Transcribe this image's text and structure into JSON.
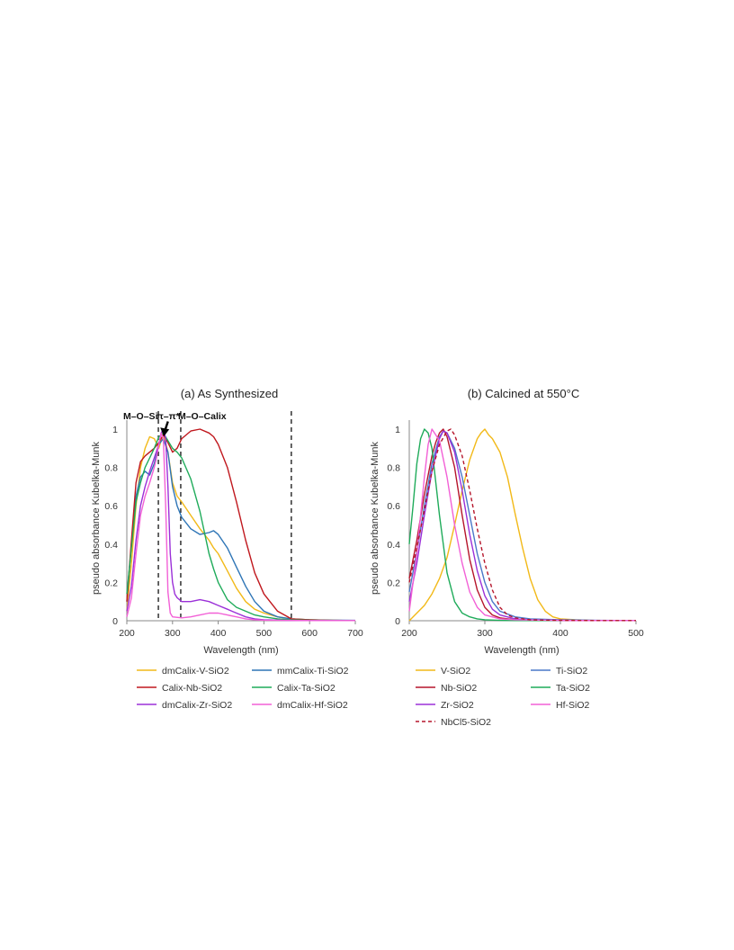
{
  "chart_data": [
    {
      "type": "line",
      "title": "(a) As Synthesized",
      "xlabel": "Wavelength (nm)",
      "ylabel": "pseudo absorbance Kubelka-Munk",
      "xlim": [
        200,
        700
      ],
      "ylim": [
        0,
        1
      ],
      "xticks": [
        "200",
        "300",
        "400",
        "500",
        "600",
        "700"
      ],
      "yticks": [
        "0",
        "0.2",
        "0.4",
        "0.6",
        "0.8",
        "1"
      ],
      "grid": false,
      "legend": "bottom",
      "annotations": [
        {
          "text": "M–O–Si",
          "x": 230,
          "y": 1.07
        },
        {
          "text": "π–π*",
          "x": 290,
          "y": 1.07
        },
        {
          "text": "M–O–Calix",
          "x": 365,
          "y": 1.07
        }
      ],
      "dashed_lines_x": [
        269,
        318,
        560
      ],
      "arrow": {
        "from": [
          290,
          1.04
        ],
        "to": [
          283,
          0.98
        ]
      },
      "series": [
        {
          "name": "dmCalix-V-SiO2",
          "color": "#f2b918",
          "x": [
            200,
            210,
            220,
            230,
            240,
            250,
            260,
            270,
            280,
            290,
            300,
            310,
            320,
            340,
            360,
            380,
            390,
            400,
            420,
            440,
            460,
            480,
            500,
            530,
            560,
            600,
            650,
            700
          ],
          "y": [
            0.05,
            0.3,
            0.6,
            0.8,
            0.9,
            0.96,
            0.95,
            0.9,
            0.98,
            0.88,
            0.72,
            0.65,
            0.62,
            0.55,
            0.48,
            0.42,
            0.38,
            0.35,
            0.26,
            0.17,
            0.1,
            0.06,
            0.04,
            0.02,
            0.01,
            0.005,
            0.002,
            0.001
          ]
        },
        {
          "name": "mmCalix-Ti-SiO2",
          "color": "#2e75b6",
          "x": [
            200,
            210,
            220,
            230,
            240,
            250,
            260,
            270,
            280,
            290,
            300,
            310,
            320,
            340,
            360,
            380,
            390,
            400,
            420,
            440,
            460,
            480,
            500,
            530,
            560,
            600,
            650,
            700
          ],
          "y": [
            0.1,
            0.4,
            0.65,
            0.75,
            0.78,
            0.76,
            0.82,
            0.92,
            0.95,
            0.88,
            0.7,
            0.6,
            0.54,
            0.48,
            0.45,
            0.46,
            0.47,
            0.45,
            0.38,
            0.28,
            0.18,
            0.1,
            0.05,
            0.02,
            0.01,
            0.005,
            0.003,
            0.002
          ]
        },
        {
          "name": "Calix-Nb-SiO2",
          "color": "#c0181e",
          "x": [
            200,
            210,
            220,
            230,
            240,
            250,
            260,
            270,
            280,
            290,
            300,
            310,
            320,
            340,
            360,
            380,
            390,
            400,
            420,
            440,
            460,
            480,
            500,
            530,
            560,
            600,
            650,
            700
          ],
          "y": [
            0.1,
            0.42,
            0.72,
            0.83,
            0.86,
            0.88,
            0.9,
            0.93,
            0.97,
            0.93,
            0.88,
            0.9,
            0.95,
            0.99,
            1.0,
            0.98,
            0.96,
            0.92,
            0.8,
            0.62,
            0.42,
            0.25,
            0.14,
            0.05,
            0.01,
            0.005,
            0.002,
            0.001
          ]
        },
        {
          "name": "Calix-Ta-SiO2",
          "color": "#1fab5a",
          "x": [
            200,
            210,
            220,
            230,
            240,
            250,
            260,
            270,
            280,
            290,
            300,
            310,
            320,
            340,
            360,
            380,
            390,
            400,
            420,
            440,
            460,
            480,
            500,
            530,
            560,
            600,
            650,
            700
          ],
          "y": [
            0.14,
            0.38,
            0.62,
            0.72,
            0.8,
            0.85,
            0.9,
            0.96,
            0.98,
            0.94,
            0.9,
            0.88,
            0.85,
            0.74,
            0.57,
            0.35,
            0.27,
            0.2,
            0.11,
            0.07,
            0.05,
            0.03,
            0.02,
            0.01,
            0.005,
            0.003,
            0.002,
            0.001
          ]
        },
        {
          "name": "dmCalix-Zr-SiO2",
          "color": "#9b30d8",
          "x": [
            200,
            210,
            220,
            230,
            240,
            250,
            260,
            270,
            275,
            280,
            285,
            290,
            295,
            300,
            305,
            310,
            320,
            340,
            360,
            380,
            400,
            420,
            440,
            460,
            480,
            500,
            550,
            600,
            650,
            700
          ],
          "y": [
            0.05,
            0.18,
            0.42,
            0.6,
            0.7,
            0.78,
            0.85,
            0.92,
            0.98,
            1.0,
            0.95,
            0.7,
            0.35,
            0.2,
            0.14,
            0.12,
            0.1,
            0.1,
            0.11,
            0.1,
            0.08,
            0.06,
            0.04,
            0.02,
            0.01,
            0.005,
            0.002,
            0.001,
            0.001,
            0.001
          ]
        },
        {
          "name": "dmCalix-Hf-SiO2",
          "color": "#f260d6",
          "x": [
            200,
            210,
            220,
            230,
            240,
            250,
            260,
            265,
            270,
            275,
            280,
            285,
            290,
            295,
            300,
            320,
            340,
            360,
            380,
            400,
            420,
            440,
            460,
            480,
            500,
            550,
            600,
            650,
            700
          ],
          "y": [
            0.02,
            0.12,
            0.35,
            0.55,
            0.65,
            0.72,
            0.8,
            0.85,
            0.92,
            0.98,
            0.95,
            0.6,
            0.15,
            0.04,
            0.02,
            0.015,
            0.02,
            0.03,
            0.04,
            0.04,
            0.03,
            0.02,
            0.01,
            0.005,
            0.003,
            0.002,
            0.001,
            0.001,
            0.001
          ]
        }
      ]
    },
    {
      "type": "line",
      "title": "(b) Calcined at 550°C",
      "xlabel": "Wavelength (nm)",
      "ylabel": "pseudo absorbance Kubelka-Munk",
      "xlim": [
        200,
        500
      ],
      "ylim": [
        0,
        1
      ],
      "xticks": [
        "200",
        "300",
        "400",
        "500"
      ],
      "yticks": [
        "0",
        "0.2",
        "0.4",
        "0.6",
        "0.8",
        "1"
      ],
      "grid": false,
      "legend": "bottom",
      "series": [
        {
          "name": "V-SiO2",
          "color": "#f2b918",
          "x": [
            200,
            210,
            220,
            230,
            240,
            250,
            260,
            270,
            280,
            290,
            295,
            300,
            305,
            310,
            320,
            330,
            340,
            350,
            360,
            370,
            380,
            390,
            400,
            420,
            440,
            470,
            500
          ],
          "y": [
            0.0,
            0.04,
            0.08,
            0.14,
            0.22,
            0.33,
            0.5,
            0.68,
            0.84,
            0.95,
            0.98,
            1.0,
            0.97,
            0.95,
            0.88,
            0.75,
            0.56,
            0.38,
            0.22,
            0.11,
            0.05,
            0.02,
            0.01,
            0.005,
            0.002,
            0.001,
            0.001
          ]
        },
        {
          "name": "Ti-SiO2",
          "color": "#4a78c8",
          "x": [
            200,
            210,
            220,
            230,
            240,
            245,
            250,
            260,
            270,
            280,
            290,
            300,
            310,
            320,
            340,
            360,
            400,
            450,
            500
          ],
          "y": [
            0.15,
            0.36,
            0.6,
            0.82,
            0.96,
            0.99,
            0.98,
            0.9,
            0.75,
            0.55,
            0.35,
            0.2,
            0.1,
            0.05,
            0.02,
            0.01,
            0.005,
            0.002,
            0.001
          ]
        },
        {
          "name": "Nb-SiO2",
          "color": "#b5152b",
          "x": [
            200,
            210,
            220,
            230,
            235,
            240,
            245,
            250,
            260,
            270,
            280,
            290,
            300,
            310,
            320,
            340,
            360,
            400,
            450,
            500
          ],
          "y": [
            0.22,
            0.42,
            0.66,
            0.86,
            0.93,
            0.98,
            1.0,
            0.96,
            0.8,
            0.55,
            0.32,
            0.16,
            0.07,
            0.03,
            0.015,
            0.005,
            0.003,
            0.002,
            0.001,
            0.001
          ]
        },
        {
          "name": "Ta-SiO2",
          "color": "#1fab5a",
          "x": [
            200,
            205,
            210,
            215,
            220,
            225,
            230,
            240,
            250,
            260,
            270,
            280,
            290,
            300,
            320,
            340,
            400,
            450,
            500
          ],
          "y": [
            0.4,
            0.6,
            0.82,
            0.95,
            1.0,
            0.98,
            0.9,
            0.55,
            0.25,
            0.1,
            0.04,
            0.02,
            0.01,
            0.005,
            0.002,
            0.001,
            0.001,
            0.001,
            0.001
          ]
        },
        {
          "name": "Zr-SiO2",
          "color": "#9b30d8",
          "x": [
            200,
            210,
            220,
            230,
            240,
            245,
            250,
            260,
            270,
            280,
            290,
            300,
            310,
            320,
            340,
            360,
            400,
            450,
            500
          ],
          "y": [
            0.1,
            0.3,
            0.55,
            0.78,
            0.95,
            0.99,
            0.98,
            0.88,
            0.68,
            0.45,
            0.26,
            0.13,
            0.06,
            0.03,
            0.01,
            0.005,
            0.002,
            0.001,
            0.001
          ]
        },
        {
          "name": "Hf-SiO2",
          "color": "#f260d6",
          "x": [
            200,
            210,
            220,
            225,
            230,
            240,
            250,
            260,
            270,
            280,
            290,
            300,
            320,
            340,
            400,
            450,
            500
          ],
          "y": [
            0.05,
            0.35,
            0.75,
            0.92,
            1.0,
            0.94,
            0.75,
            0.5,
            0.3,
            0.15,
            0.07,
            0.03,
            0.01,
            0.005,
            0.002,
            0.001,
            0.001
          ]
        },
        {
          "name": "NbCl5-SiO2",
          "color": "#b5152b",
          "dashed": true,
          "x": [
            200,
            210,
            220,
            230,
            240,
            250,
            255,
            260,
            270,
            280,
            290,
            300,
            310,
            320,
            330,
            340,
            360,
            380,
            400,
            450,
            500
          ],
          "y": [
            0.2,
            0.38,
            0.58,
            0.78,
            0.92,
            0.99,
            1.0,
            0.97,
            0.86,
            0.68,
            0.48,
            0.3,
            0.16,
            0.07,
            0.03,
            0.015,
            0.005,
            0.003,
            0.002,
            0.001,
            0.001
          ]
        }
      ]
    }
  ]
}
